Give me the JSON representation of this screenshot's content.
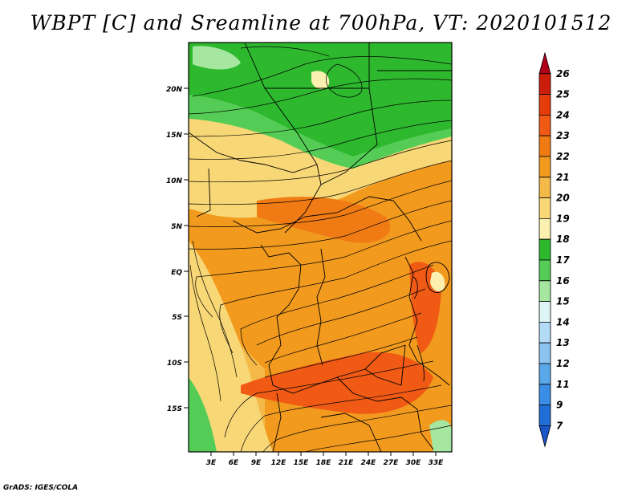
{
  "title": "WBPT [C] and Sreamline at 700hPa, VT: 2020101512",
  "credit": "GrADS: IGES/COLA",
  "map": {
    "lat_ticks": [
      "20N",
      "15N",
      "10N",
      "5N",
      "EQ",
      "5S",
      "10S",
      "15S"
    ],
    "lon_ticks": [
      "3E",
      "6E",
      "9E",
      "12E",
      "15E",
      "18E",
      "21E",
      "24E",
      "27E",
      "30E",
      "33E"
    ]
  },
  "colorbar": {
    "levels": [
      "26",
      "25",
      "24",
      "23",
      "22",
      "21",
      "20",
      "19",
      "18",
      "17",
      "16",
      "15",
      "14",
      "13",
      "12",
      "11",
      "9",
      "7"
    ],
    "colors": [
      "#b0001a",
      "#cc1c0c",
      "#e63b0a",
      "#f05a14",
      "#f07b14",
      "#f29a1e",
      "#f5b94a",
      "#f8d776",
      "#fbf0b0",
      "#2eb82e",
      "#55cc55",
      "#a5e6a0",
      "#dff5f5",
      "#b3dbf5",
      "#8cc4f0",
      "#5aa8ea",
      "#3a8ee6",
      "#1f6fd6",
      "#1a55c8"
    ]
  },
  "field_colors": {
    "green_dark": "#2eb82e",
    "green_mid": "#55cc55",
    "green_light": "#a5e6a0",
    "cream": "#fbf0b0",
    "yellow": "#f8d776",
    "orange_light": "#f5b94a",
    "orange": "#f29a1e",
    "orange_dark": "#f07b14",
    "red_orange": "#f05a14"
  }
}
